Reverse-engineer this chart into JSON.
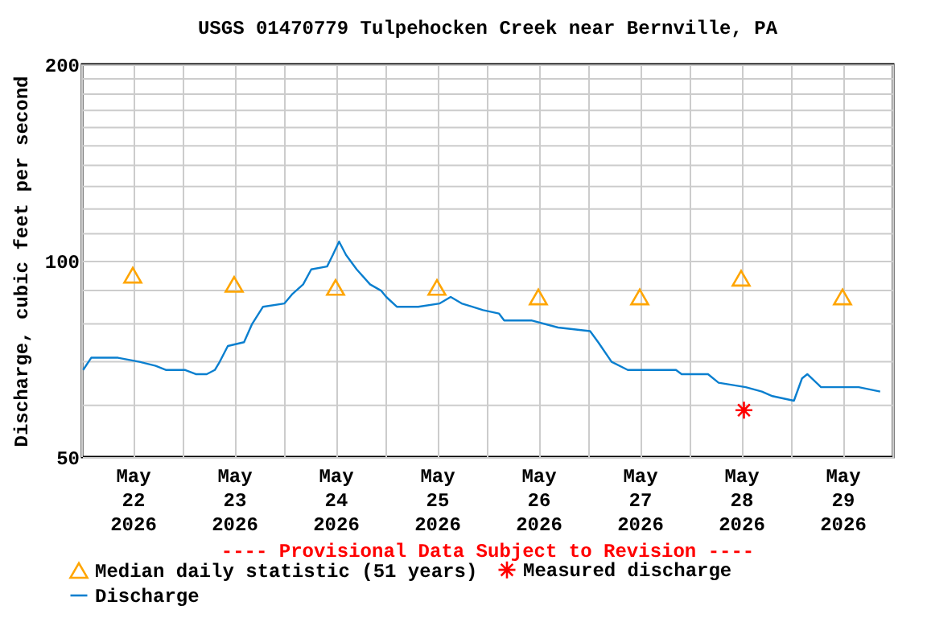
{
  "chart_data": {
    "type": "line",
    "title": "USGS 01470779 Tulpehocken Creek near Bernville, PA",
    "ylabel": "Discharge, cubic feet per second",
    "annotations": [
      "---- Provisional Data Subject to Revision ----"
    ],
    "xlim": [
      "2026-05-22T00:00",
      "2026-05-30T00:00"
    ],
    "xticks": [
      {
        "value": "2026-05-22T00:00",
        "label": null
      },
      {
        "value": "2026-05-22T12:00",
        "label": "May 22 2026"
      },
      {
        "value": "2026-05-23T00:00",
        "label": null
      },
      {
        "value": "2026-05-23T12:00",
        "label": "May 23 2026"
      },
      {
        "value": "2026-05-24T00:00",
        "label": null
      },
      {
        "value": "2026-05-24T12:00",
        "label": "May 24 2026"
      },
      {
        "value": "2026-05-25T00:00",
        "label": null
      },
      {
        "value": "2026-05-25T12:00",
        "label": "May 25 2026"
      },
      {
        "value": "2026-05-26T00:00",
        "label": null
      },
      {
        "value": "2026-05-26T12:00",
        "label": "May 26 2026"
      },
      {
        "value": "2026-05-27T00:00",
        "label": null
      },
      {
        "value": "2026-05-27T12:00",
        "label": "May 27 2026"
      },
      {
        "value": "2026-05-28T00:00",
        "label": null
      },
      {
        "value": "2026-05-28T12:00",
        "label": "May 28 2026"
      },
      {
        "value": "2026-05-29T00:00",
        "label": null
      },
      {
        "value": "2026-05-29T12:00",
        "label": "May 29 2026"
      },
      {
        "value": "2026-05-30T00:00",
        "label": null
      }
    ],
    "ylim": [
      50,
      200
    ],
    "log": "y",
    "yticks": [
      50,
      {
        "value": 60,
        "label": null
      },
      {
        "value": 70,
        "label": null
      },
      {
        "value": 80,
        "label": null
      },
      {
        "value": 90,
        "label": null
      },
      100,
      {
        "value": 110,
        "label": null
      },
      {
        "value": 120,
        "label": null
      },
      {
        "value": 130,
        "label": null
      },
      {
        "value": 140,
        "label": null
      },
      {
        "value": 150,
        "label": null
      },
      {
        "value": 160,
        "label": null
      },
      {
        "value": 170,
        "label": null
      },
      {
        "value": 180,
        "label": null
      },
      {
        "value": 190,
        "label": null
      },
      200
    ],
    "grid": true,
    "legend": "bottom",
    "series": [
      {
        "name": "Median daily statistic (51 years)",
        "type": "scatter",
        "marker": "triangle",
        "color": "#ffa500",
        "x": [
          "2026-05-22T12:00",
          "2026-05-23T12:00",
          "2026-05-24T12:00",
          "2026-05-25T12:00",
          "2026-05-26T12:00",
          "2026-05-27T12:00",
          "2026-05-28T12:00",
          "2026-05-29T12:00"
        ],
        "values": [
          95,
          92,
          91,
          91,
          88,
          88,
          94,
          88
        ]
      },
      {
        "name": "Measured discharge",
        "type": "scatter",
        "marker": "cross",
        "color": "#ff0000",
        "x": [
          "2026-05-28T12:40"
        ],
        "values": [
          59
        ]
      },
      {
        "name": "Discharge",
        "color": "#0a7fcf",
        "x": [
          "2026-05-22T00:15",
          "2026-05-22T02:10",
          "2026-05-22T08:30",
          "2026-05-22T13:35",
          "2026-05-22T17:25",
          "2026-05-22T19:55",
          "2026-05-23T00:25",
          "2026-05-23T02:55",
          "2026-05-23T05:30",
          "2026-05-23T07:25",
          "2026-05-23T08:35",
          "2026-05-23T10:30",
          "2026-05-23T14:20",
          "2026-05-23T16:15",
          "2026-05-23T18:50",
          "2026-05-23T23:55",
          "2026-05-24T01:50",
          "2026-05-24T04:20",
          "2026-05-24T06:15",
          "2026-05-24T10:00",
          "2026-05-24T11:20",
          "2026-05-24T12:50",
          "2026-05-24T14:30",
          "2026-05-24T17:00",
          "2026-05-24T20:10",
          "2026-05-24T22:45",
          "2026-05-25T00:00",
          "2026-05-25T02:30",
          "2026-05-25T07:35",
          "2026-05-25T12:40",
          "2026-05-25T15:15",
          "2026-05-25T17:50",
          "2026-05-25T20:20",
          "2026-05-25T22:55",
          "2026-05-26T02:40",
          "2026-05-26T03:55",
          "2026-05-26T10:20",
          "2026-05-26T16:40",
          "2026-05-27T00:15",
          "2026-05-27T02:10",
          "2026-05-27T05:20",
          "2026-05-27T09:10",
          "2026-05-27T20:35",
          "2026-05-27T21:55",
          "2026-05-28T04:10",
          "2026-05-28T06:40",
          "2026-05-28T13:05",
          "2026-05-28T16:55",
          "2026-05-28T19:25",
          "2026-05-29T00:30",
          "2026-05-29T02:25",
          "2026-05-29T03:40",
          "2026-05-29T06:55",
          "2026-05-29T15:50",
          "2026-05-29T20:55"
        ],
        "values": [
          68,
          71,
          71,
          70,
          69,
          68,
          68,
          67,
          67,
          68,
          70,
          74,
          75,
          80,
          85,
          86,
          89,
          92,
          97,
          98,
          102,
          107,
          102,
          97,
          92,
          90,
          88,
          85,
          85,
          86,
          88,
          86,
          85,
          84,
          83,
          81,
          81,
          79,
          78,
          75,
          70,
          68,
          68,
          67,
          67,
          65,
          64,
          63,
          62,
          61,
          66,
          67,
          64,
          64,
          63
        ]
      }
    ]
  }
}
